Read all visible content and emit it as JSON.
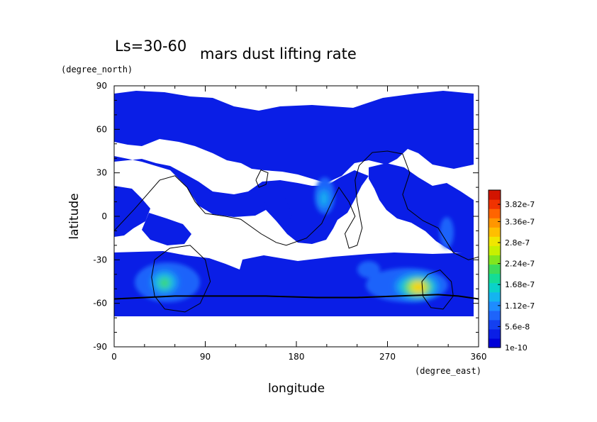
{
  "chart_data": {
    "type": "heatmap",
    "title": "mars dust lifting rate",
    "subtitle": "Ls=30-60",
    "xlabel": "longitude",
    "ylabel": "latitude",
    "x_units": "(degree_east)",
    "y_units": "(degree_north)",
    "xlim": [
      0,
      360
    ],
    "ylim": [
      -90,
      90
    ],
    "x_ticks": [
      0,
      90,
      180,
      270,
      360
    ],
    "y_ticks": [
      -90,
      -60,
      -30,
      0,
      30,
      60,
      90
    ],
    "x_tick_labels": [
      "0",
      "90",
      "180",
      "270",
      "360"
    ],
    "y_tick_labels": [
      "-90",
      "-60",
      "-30",
      "0",
      "30",
      "60",
      "90"
    ],
    "colorbar": {
      "min": 1e-10,
      "max": 4.2e-07,
      "tick_values": [
        1e-10,
        5.6e-08,
        1.12e-07,
        1.68e-07,
        2.24e-07,
        2.8e-07,
        3.36e-07,
        3.82e-07
      ],
      "tick_labels": [
        "1e-10",
        "5.6e-8",
        "1.12e-7",
        "1.68e-7",
        "2.24e-7",
        "2.8e-7",
        "3.36e-7",
        "3.82e-7"
      ],
      "colors": [
        "#0000d8",
        "#0a1ee6",
        "#1440f0",
        "#1e64fa",
        "#1e8cff",
        "#14b4f0",
        "#0ad2c8",
        "#14dc96",
        "#3cdc5a",
        "#82e61e",
        "#c8f000",
        "#f0e600",
        "#ffbe00",
        "#ff9600",
        "#ff6400",
        "#f03200",
        "#d21400"
      ]
    },
    "hotspots": [
      {
        "lon": 305,
        "lat": -50,
        "value": 3e-07
      },
      {
        "lon": 50,
        "lat": -47,
        "value": 1.8e-07
      },
      {
        "lon": 210,
        "lat": 12,
        "value": 1e-07
      },
      {
        "lon": 330,
        "lat": -15,
        "value": 6e-08
      }
    ],
    "contours": {
      "zero_line": [
        [
          0,
          -10
        ],
        [
          20,
          5
        ],
        [
          45,
          25
        ],
        [
          60,
          28
        ],
        [
          72,
          20
        ],
        [
          80,
          10
        ],
        [
          90,
          2
        ],
        [
          110,
          0
        ],
        [
          125,
          -2
        ],
        [
          145,
          -12
        ],
        [
          160,
          -18
        ],
        [
          170,
          -20
        ],
        [
          190,
          -15
        ],
        [
          205,
          -5
        ],
        [
          215,
          10
        ],
        [
          222,
          20
        ],
        [
          232,
          10
        ],
        [
          238,
          0
        ],
        [
          228,
          -12
        ],
        [
          232,
          -22
        ],
        [
          240,
          -20
        ],
        [
          245,
          -8
        ],
        [
          240,
          10
        ],
        [
          238,
          25
        ],
        [
          242,
          35
        ],
        [
          255,
          44
        ],
        [
          270,
          45
        ],
        [
          285,
          43
        ],
        [
          292,
          30
        ],
        [
          285,
          15
        ],
        [
          290,
          5
        ],
        [
          305,
          -3
        ],
        [
          320,
          -8
        ],
        [
          335,
          -25
        ],
        [
          350,
          -30
        ],
        [
          360,
          -28
        ]
      ],
      "bump_loop": [
        [
          140,
          25
        ],
        [
          145,
          32
        ],
        [
          152,
          30
        ],
        [
          150,
          22
        ],
        [
          143,
          20
        ],
        [
          140,
          25
        ]
      ],
      "left_loop": [
        [
          40,
          -30
        ],
        [
          55,
          -22
        ],
        [
          75,
          -20
        ],
        [
          90,
          -30
        ],
        [
          95,
          -45
        ],
        [
          85,
          -60
        ],
        [
          70,
          -66
        ],
        [
          50,
          -64
        ],
        [
          40,
          -55
        ],
        [
          37,
          -42
        ],
        [
          40,
          -30
        ]
      ],
      "right_loop": [
        [
          310,
          -40
        ],
        [
          322,
          -37
        ],
        [
          333,
          -45
        ],
        [
          335,
          -55
        ],
        [
          325,
          -64
        ],
        [
          313,
          -63
        ],
        [
          305,
          -55
        ],
        [
          304,
          -45
        ],
        [
          310,
          -40
        ]
      ],
      "south_line": [
        [
          0,
          -57
        ],
        [
          30,
          -56
        ],
        [
          60,
          -55
        ],
        [
          100,
          -55
        ],
        [
          150,
          -55
        ],
        [
          200,
          -56
        ],
        [
          240,
          -56
        ],
        [
          280,
          -55
        ],
        [
          320,
          -54
        ],
        [
          340,
          -55
        ],
        [
          360,
          -57
        ]
      ]
    }
  }
}
